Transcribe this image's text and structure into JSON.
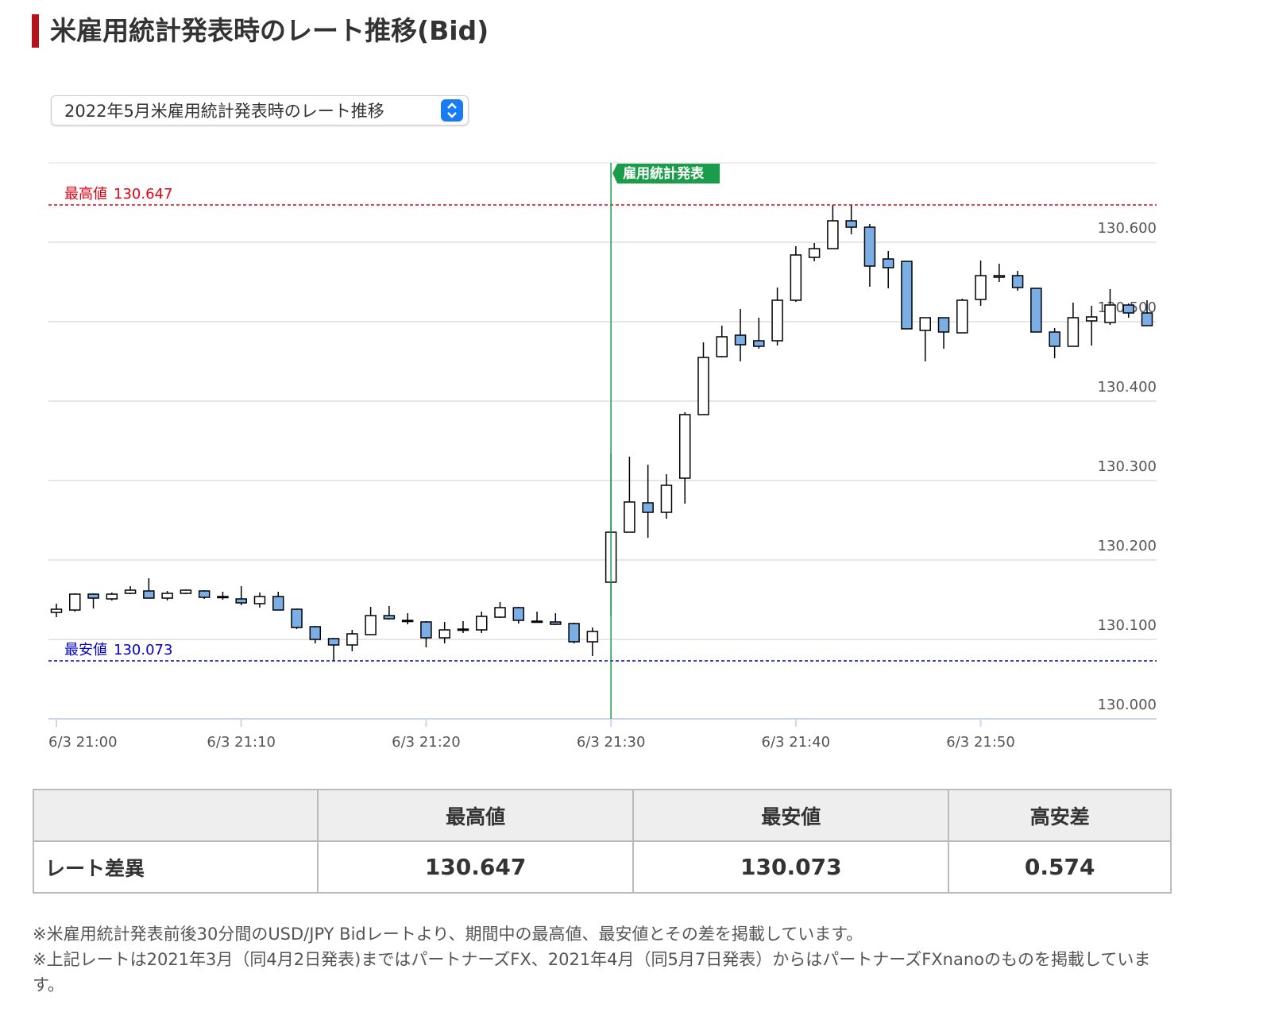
{
  "header": {
    "title": "米雇用統計発表時のレート推移(Bid)"
  },
  "selector": {
    "selected": "2022年5月米雇用統計発表時のレート推移"
  },
  "chart_data": {
    "type": "candlestick",
    "categories": [
      "6/3 21:00",
      null,
      null,
      null,
      null,
      null,
      null,
      null,
      null,
      null,
      "6/3 21:10",
      null,
      null,
      null,
      null,
      null,
      null,
      null,
      null,
      null,
      "6/3 21:20",
      null,
      null,
      null,
      null,
      null,
      null,
      null,
      null,
      null,
      "6/3 21:30",
      null,
      null,
      null,
      null,
      null,
      null,
      null,
      null,
      null,
      "6/3 21:40",
      null,
      null,
      null,
      null,
      null,
      null,
      null,
      null,
      null,
      "6/3 21:50",
      null,
      null,
      null,
      null,
      null,
      null,
      null,
      null,
      null
    ],
    "open": [
      130.134,
      130.137,
      130.157,
      130.151,
      130.158,
      130.161,
      130.152,
      130.158,
      130.161,
      130.154,
      130.151,
      130.145,
      130.154,
      130.138,
      130.116,
      130.101,
      130.093,
      130.106,
      130.13,
      130.124,
      130.122,
      130.102,
      130.112,
      130.112,
      130.128,
      130.14,
      130.123,
      130.122,
      130.12,
      130.097,
      130.172,
      130.235,
      130.272,
      130.26,
      130.303,
      130.383,
      130.456,
      130.483,
      130.476,
      130.476,
      130.527,
      130.581,
      130.592,
      130.627,
      130.619,
      130.579,
      130.576,
      130.489,
      130.505,
      130.486,
      130.528,
      130.558,
      130.558,
      130.542,
      130.487,
      130.469,
      130.501,
      130.499,
      130.521,
      130.511
    ],
    "high": [
      130.145,
      130.158,
      130.158,
      130.159,
      130.167,
      130.177,
      130.161,
      130.163,
      130.162,
      130.16,
      130.167,
      130.159,
      130.16,
      130.139,
      130.117,
      130.102,
      130.112,
      130.141,
      130.142,
      130.133,
      130.123,
      130.122,
      130.123,
      130.135,
      130.147,
      130.141,
      130.135,
      130.133,
      130.121,
      130.115,
      130.334,
      130.33,
      130.32,
      130.308,
      130.386,
      130.474,
      130.495,
      130.516,
      130.505,
      130.543,
      130.595,
      130.599,
      130.647,
      130.647,
      130.623,
      130.589,
      130.576,
      130.505,
      130.505,
      130.529,
      130.577,
      130.573,
      130.564,
      130.542,
      130.492,
      130.524,
      130.52,
      130.541,
      130.523,
      130.527
    ],
    "low": [
      130.128,
      130.135,
      130.139,
      130.149,
      130.157,
      130.152,
      130.149,
      130.157,
      130.151,
      130.15,
      130.143,
      130.14,
      130.137,
      130.113,
      130.095,
      130.073,
      130.085,
      130.106,
      130.125,
      130.119,
      130.09,
      130.095,
      130.108,
      130.108,
      130.127,
      130.12,
      130.122,
      130.118,
      130.095,
      130.079,
      130.13,
      130.235,
      130.228,
      130.252,
      130.271,
      130.383,
      130.455,
      130.45,
      130.466,
      130.47,
      130.525,
      130.576,
      130.592,
      130.61,
      130.544,
      130.542,
      130.491,
      130.45,
      130.466,
      130.486,
      130.52,
      130.55,
      130.539,
      130.487,
      130.454,
      130.469,
      130.47,
      130.496,
      130.505,
      130.495
    ],
    "close": [
      130.138,
      130.157,
      130.152,
      130.157,
      130.162,
      130.152,
      130.158,
      130.162,
      130.153,
      130.153,
      130.146,
      130.154,
      130.137,
      130.115,
      130.1,
      130.093,
      130.107,
      130.13,
      130.126,
      130.123,
      130.102,
      130.112,
      130.113,
      130.129,
      130.14,
      130.124,
      130.123,
      130.119,
      130.097,
      130.11,
      130.235,
      130.273,
      130.26,
      130.294,
      130.383,
      130.455,
      130.481,
      130.471,
      130.469,
      130.527,
      130.584,
      130.592,
      130.627,
      130.619,
      130.57,
      130.568,
      130.491,
      130.505,
      130.487,
      130.527,
      130.558,
      130.556,
      130.543,
      130.487,
      130.469,
      130.505,
      130.506,
      130.521,
      130.511,
      130.495
    ],
    "up_color": "#ffffff",
    "down_color": "#7aaee4",
    "ylim": [
      130.0,
      130.7
    ],
    "yticks": [
      {
        "value": 130.0,
        "label": "130.000"
      },
      {
        "value": 130.1,
        "label": "130.100"
      },
      {
        "value": 130.2,
        "label": "130.200"
      },
      {
        "value": 130.3,
        "label": "130.300"
      },
      {
        "value": 130.4,
        "label": "130.400"
      },
      {
        "value": 130.5,
        "label": "130.500"
      },
      {
        "value": 130.6,
        "label": "130.600"
      }
    ],
    "grid": true,
    "annotations": [
      {
        "label": "最高値",
        "value": 130.647,
        "color": "#e60012"
      },
      {
        "label": "最安値",
        "value": 130.073,
        "color": "#0000cc"
      }
    ],
    "event": {
      "label": "雇用統計発表",
      "x": "6/3 21:30",
      "color": "#1a9c4a"
    }
  },
  "table": {
    "columns": [
      "最高値",
      "最安値",
      "高安差"
    ],
    "rows": [
      {
        "label": "レート差異",
        "values": [
          "130.647",
          "130.073",
          "0.574"
        ]
      }
    ]
  },
  "notes": [
    "※米雇用統計発表前後30分間のUSD/JPY Bidレートより、期間中の最高値、最安値とその差を掲載しています。",
    "※上記レートは2021年3月（同4月2日発表)まではパートナーズFX、2021年4月（同5月7日発表）からはパートナーズFXnanoのものを掲載しています。"
  ]
}
